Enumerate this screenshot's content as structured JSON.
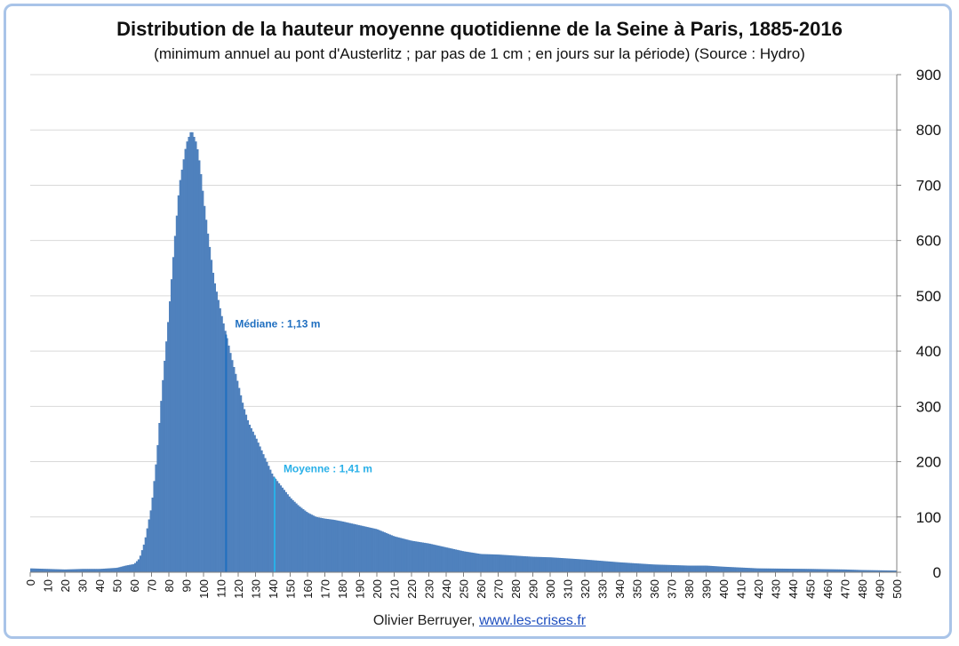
{
  "chart_data": {
    "type": "bar",
    "title": "Distribution de la hauteur moyenne quotidienne de la Seine à Paris, 1885-2016",
    "subtitle": "(minimum annuel au pont d'Austerlitz ; par pas de 1 cm ; en jours sur la période) (Source : Hydro)",
    "xlabel": "",
    "ylabel": "",
    "y_axis_position": "right",
    "xlim": [
      0,
      500
    ],
    "ylim": [
      0,
      900
    ],
    "x_ticks": [
      0,
      10,
      20,
      30,
      40,
      50,
      60,
      70,
      80,
      90,
      100,
      110,
      120,
      130,
      140,
      150,
      160,
      170,
      180,
      190,
      200,
      210,
      220,
      230,
      240,
      250,
      260,
      270,
      280,
      290,
      300,
      310,
      320,
      330,
      340,
      350,
      360,
      370,
      380,
      390,
      400,
      410,
      420,
      430,
      440,
      450,
      460,
      470,
      480,
      490,
      500
    ],
    "y_ticks": [
      0,
      100,
      200,
      300,
      400,
      500,
      600,
      700,
      800,
      900
    ],
    "grid": true,
    "bar_color": "#4f81bd",
    "profile_x": [
      0,
      20,
      30,
      40,
      50,
      55,
      60,
      63,
      66,
      70,
      73,
      76,
      80,
      83,
      86,
      90,
      93,
      96,
      98,
      100,
      103,
      106,
      110,
      113,
      116,
      120,
      123,
      126,
      130,
      135,
      140,
      145,
      150,
      155,
      160,
      165,
      170,
      175,
      180,
      190,
      200,
      210,
      220,
      230,
      240,
      250,
      260,
      270,
      280,
      290,
      300,
      320,
      340,
      360,
      380,
      390,
      400,
      420,
      450,
      470,
      480,
      500
    ],
    "profile_y": [
      7,
      5,
      6,
      6,
      8,
      12,
      15,
      25,
      55,
      120,
      210,
      330,
      470,
      590,
      700,
      775,
      800,
      775,
      735,
      675,
      600,
      530,
      470,
      430,
      390,
      340,
      300,
      270,
      245,
      210,
      175,
      155,
      135,
      120,
      108,
      100,
      97,
      95,
      92,
      85,
      78,
      65,
      57,
      52,
      45,
      38,
      33,
      32,
      30,
      28,
      27,
      23,
      18,
      14,
      12,
      12,
      10,
      7,
      6,
      5,
      4,
      3
    ],
    "annotations": [
      {
        "label": "Médiane : 1,13 m",
        "x": 113,
        "color": "#1f6fc0"
      },
      {
        "label": "Moyenne : 1,41 m",
        "x": 141,
        "color": "#29b0e8"
      }
    ]
  },
  "credit": {
    "author": "Olivier Berruyer,",
    "link": "www.les-crises.fr"
  }
}
